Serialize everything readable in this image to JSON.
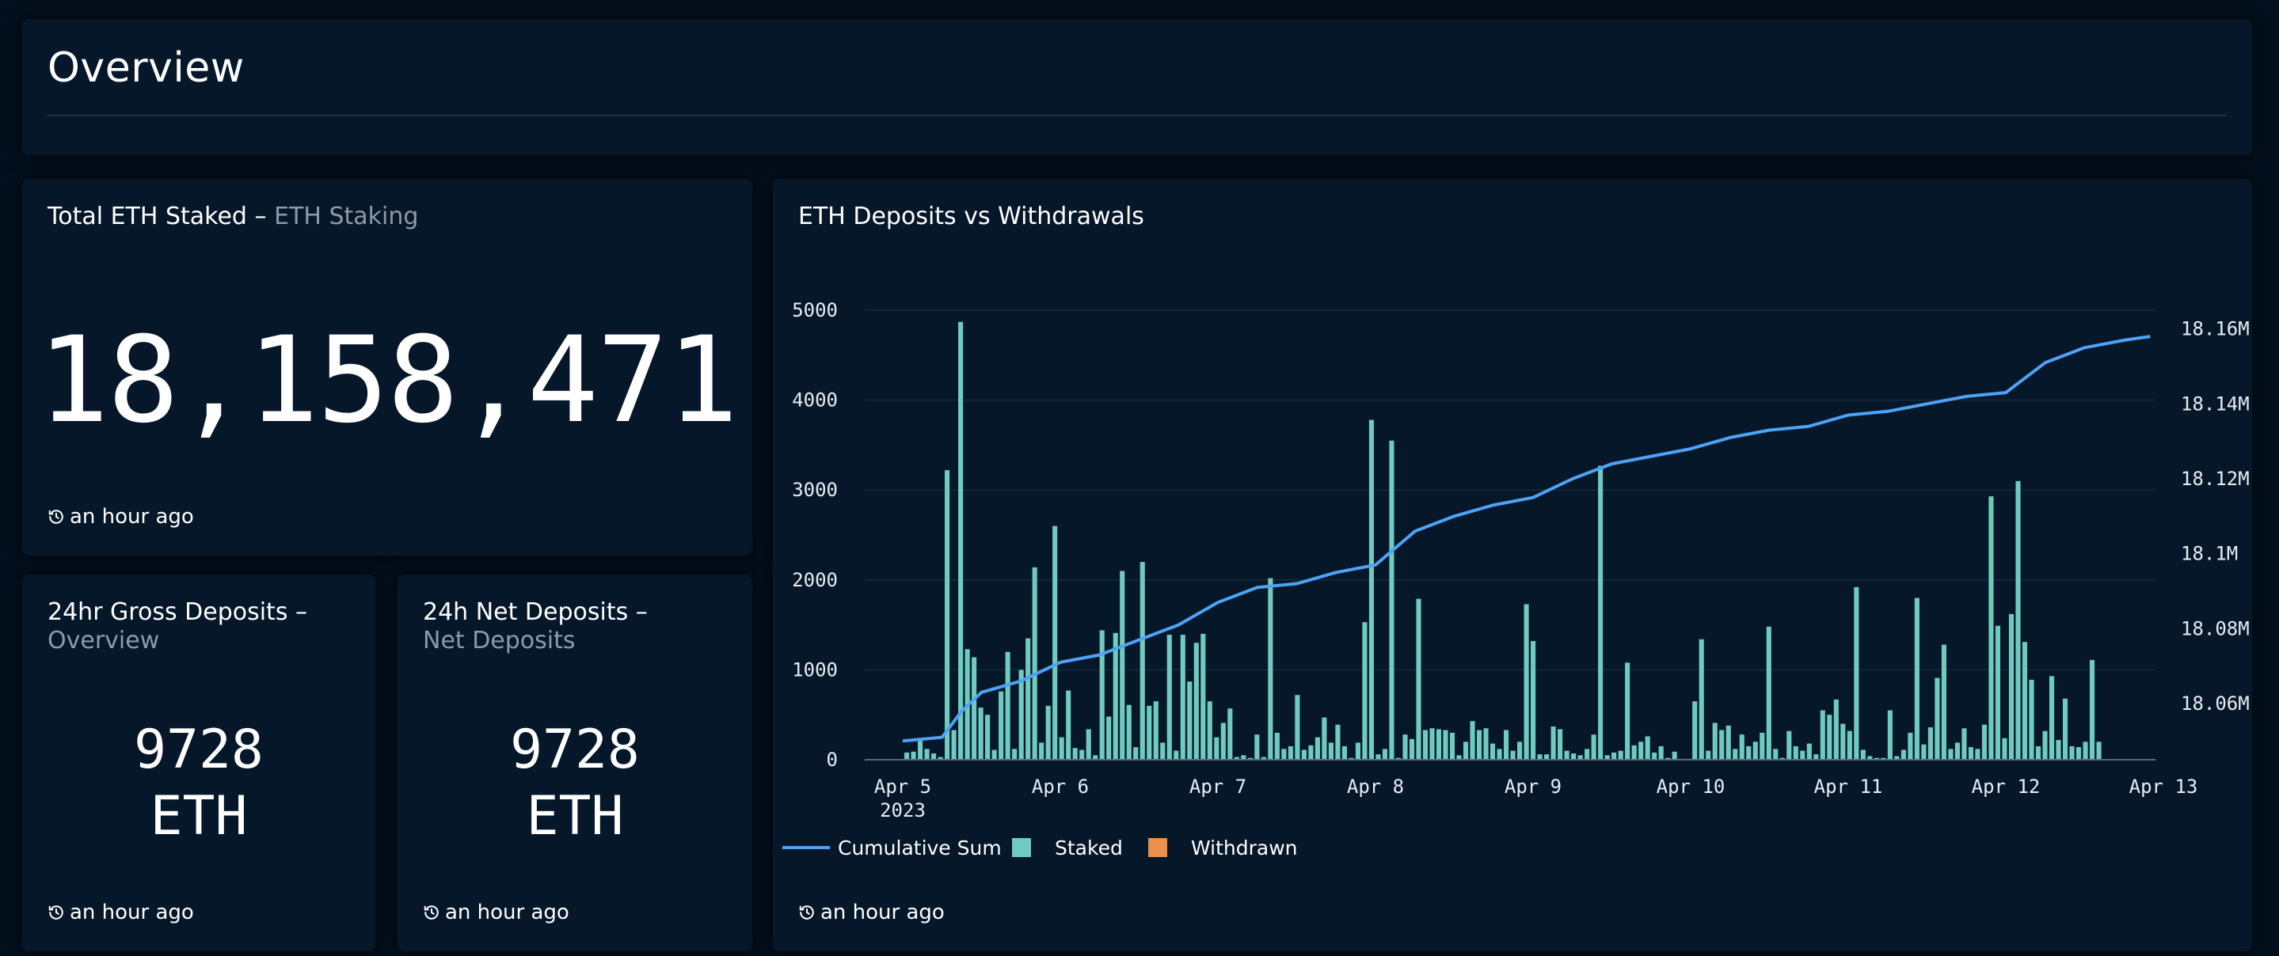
{
  "overview": {
    "title": "Overview"
  },
  "total_staked": {
    "title": "Total ETH Staked",
    "separator": "–",
    "subtitle": "ETH Staking",
    "value": "18,158,471",
    "updated": "an hour ago"
  },
  "gross_deposits": {
    "title": "24hr Gross Deposits",
    "separator": "–",
    "subtitle": "Overview",
    "value": "9728",
    "unit": "ETH",
    "updated": "an hour ago"
  },
  "net_deposits": {
    "title": "24h Net Deposits",
    "separator": "–",
    "subtitle": "Net Deposits",
    "value": "9728",
    "unit": "ETH",
    "updated": "an hour ago"
  },
  "deposits_chart": {
    "title": "ETH Deposits vs Withdrawals",
    "updated": "an hour ago"
  },
  "colors": {
    "cumulative": "#4da3f5",
    "staked": "#6fcabf",
    "withdrawn": "#e8904c",
    "grid": "#12263a"
  },
  "chart_data": {
    "type": "bar",
    "title": "ETH Deposits vs Withdrawals",
    "x_axis": {
      "type": "time",
      "ticks": [
        "Apr 5",
        "Apr 6",
        "Apr 7",
        "Apr 8",
        "Apr 9",
        "Apr 10",
        "Apr 11",
        "Apr 12",
        "Apr 13"
      ],
      "year_label": "2023",
      "range": [
        "2023-04-05",
        "2023-04-13"
      ]
    },
    "y_axis_left": {
      "ticks": [
        "0",
        "1000",
        "2000",
        "3000",
        "4000",
        "5000"
      ],
      "range": [
        0,
        5000
      ]
    },
    "y_axis_right": {
      "ticks": [
        "18.06M",
        "18.08M",
        "18.1M",
        "18.12M",
        "18.14M",
        "18.16M"
      ],
      "range": [
        18.045,
        18.165
      ]
    },
    "grid": true,
    "legend": {
      "placement": "bottom-left",
      "items": [
        "Cumulative Sum",
        "Staked",
        "Withdrawn"
      ]
    },
    "series": [
      {
        "name": "Staked",
        "type": "bar",
        "axis": "left",
        "values": [
          80,
          90,
          210,
          120,
          70,
          30,
          3220,
          330,
          4870,
          1230,
          1140,
          580,
          500,
          110,
          760,
          1200,
          120,
          1000,
          1350,
          2140,
          190,
          600,
          2600,
          250,
          770,
          130,
          110,
          340,
          50,
          1440,
          480,
          1410,
          2100,
          610,
          140,
          2200,
          600,
          650,
          190,
          1390,
          100,
          1390,
          870,
          1300,
          1400,
          650,
          250,
          410,
          570,
          30,
          50,
          20,
          280,
          30,
          2020,
          300,
          120,
          150,
          720,
          110,
          160,
          250,
          470,
          190,
          390,
          150,
          20,
          190,
          1530,
          3780,
          60,
          120,
          3550,
          20,
          280,
          230,
          1790,
          330,
          350,
          340,
          330,
          300,
          50,
          200,
          430,
          330,
          350,
          180,
          120,
          330,
          100,
          200,
          1730,
          1320,
          60,
          60,
          370,
          340,
          100,
          70,
          50,
          120,
          280,
          3270,
          50,
          80,
          100,
          1080,
          160,
          200,
          260,
          80,
          150,
          20,
          90,
          10,
          10,
          650,
          1340,
          100,
          410,
          330,
          380,
          120,
          280,
          150,
          200,
          300,
          1480,
          120,
          20,
          320,
          150,
          100,
          180,
          60,
          550,
          500,
          670,
          400,
          320,
          1920,
          110,
          40,
          20,
          20,
          550,
          40,
          110,
          300,
          1800,
          170,
          360,
          910,
          1280,
          120,
          190,
          350,
          140,
          120,
          390,
          2930,
          1490,
          240,
          1620,
          3100,
          1310,
          890,
          150,
          320,
          930,
          220,
          680,
          150,
          140,
          200,
          1110,
          200
        ]
      },
      {
        "name": "Withdrawn",
        "type": "bar",
        "axis": "left",
        "values": []
      },
      {
        "name": "Cumulative Sum",
        "type": "line",
        "axis": "right",
        "points": [
          [
            "2023-04-05",
            18.05
          ],
          [
            "2023-04-05 06:00",
            18.051
          ],
          [
            "2023-04-05 09:00",
            18.058
          ],
          [
            "2023-04-05 12:00",
            18.063
          ],
          [
            "2023-04-05 18:00",
            18.066
          ],
          [
            "2023-04-06 00:00",
            18.071
          ],
          [
            "2023-04-06 06:00",
            18.073
          ],
          [
            "2023-04-06 12:00",
            18.077
          ],
          [
            "2023-04-06 18:00",
            18.081
          ],
          [
            "2023-04-07 00:00",
            18.087
          ],
          [
            "2023-04-07 06:00",
            18.091
          ],
          [
            "2023-04-07 12:00",
            18.092
          ],
          [
            "2023-04-07 18:00",
            18.095
          ],
          [
            "2023-04-08 00:00",
            18.097
          ],
          [
            "2023-04-08 06:00",
            18.106
          ],
          [
            "2023-04-08 12:00",
            18.11
          ],
          [
            "2023-04-08 18:00",
            18.113
          ],
          [
            "2023-04-09 00:00",
            18.115
          ],
          [
            "2023-04-09 06:00",
            18.12
          ],
          [
            "2023-04-09 12:00",
            18.124
          ],
          [
            "2023-04-09 18:00",
            18.126
          ],
          [
            "2023-04-10 00:00",
            18.128
          ],
          [
            "2023-04-10 06:00",
            18.131
          ],
          [
            "2023-04-10 12:00",
            18.133
          ],
          [
            "2023-04-10 18:00",
            18.134
          ],
          [
            "2023-04-11 00:00",
            18.137
          ],
          [
            "2023-04-11 06:00",
            18.138
          ],
          [
            "2023-04-11 12:00",
            18.14
          ],
          [
            "2023-04-11 18:00",
            18.142
          ],
          [
            "2023-04-12 00:00",
            18.143
          ],
          [
            "2023-04-12 06:00",
            18.151
          ],
          [
            "2023-04-12 12:00",
            18.155
          ],
          [
            "2023-04-12 18:00",
            18.157
          ],
          [
            "2023-04-12 22:00",
            18.158
          ]
        ]
      }
    ]
  }
}
